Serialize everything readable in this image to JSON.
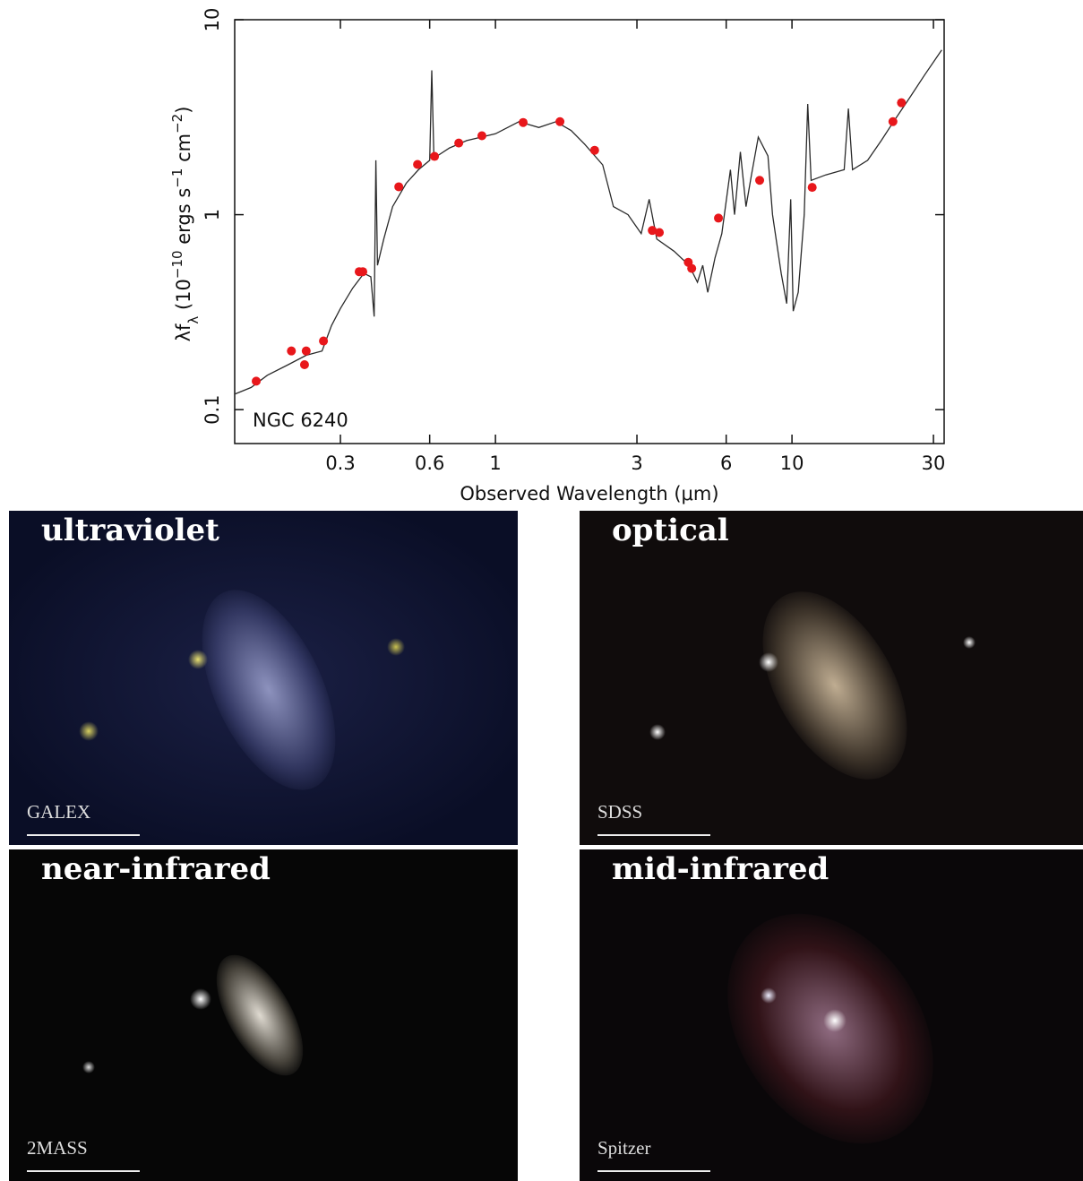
{
  "chart_data": {
    "type": "line",
    "x_label": "Observed Wavelength (μm)",
    "y_label": [
      "λf",
      "λ",
      " (10",
      "−10",
      " ergs s",
      "−1",
      " cm",
      "−2",
      ")"
    ],
    "annotation": "NGC 6240",
    "xlog": true,
    "ylog": true,
    "xlim": [
      0.132,
      32.6
    ],
    "ylim": [
      0.067,
      10
    ],
    "xticks": [
      0.3,
      0.6,
      1,
      3,
      6,
      10,
      30
    ],
    "yticks": [
      0.1,
      1,
      10
    ],
    "spectrum_color": "#2a2a2a",
    "point_color": "#e8171b",
    "spectrum": {
      "x": [
        0.132,
        0.15,
        0.17,
        0.2,
        0.23,
        0.26,
        0.28,
        0.3,
        0.33,
        0.36,
        0.38,
        0.39,
        0.395,
        0.4,
        0.42,
        0.45,
        0.5,
        0.55,
        0.6,
        0.61,
        0.62,
        0.7,
        0.8,
        1.0,
        1.2,
        1.4,
        1.6,
        1.8,
        2.0,
        2.3,
        2.5,
        2.8,
        3.1,
        3.3,
        3.5,
        4,
        4.5,
        4.8,
        5.0,
        5.2,
        5.5,
        5.8,
        6.2,
        6.4,
        6.7,
        7,
        7.3,
        7.7,
        8.3,
        8.6,
        9.2,
        9.6,
        9.9,
        10.1,
        10.5,
        11,
        11.3,
        11.6,
        13,
        15,
        15.5,
        16,
        18,
        20,
        22,
        25,
        28,
        32
      ],
      "values": [
        0.12,
        0.13,
        0.15,
        0.17,
        0.19,
        0.2,
        0.27,
        0.33,
        0.42,
        0.5,
        0.48,
        0.3,
        1.9,
        0.55,
        0.75,
        1.1,
        1.45,
        1.7,
        1.9,
        5.5,
        1.95,
        2.2,
        2.4,
        2.6,
        3.0,
        2.8,
        3.0,
        2.7,
        2.3,
        1.8,
        1.1,
        1.0,
        0.8,
        1.2,
        0.75,
        0.65,
        0.55,
        0.45,
        0.55,
        0.4,
        0.6,
        0.8,
        1.7,
        1.0,
        2.1,
        1.1,
        1.6,
        2.5,
        2.0,
        1.0,
        0.5,
        0.35,
        1.2,
        0.32,
        0.4,
        1.0,
        3.7,
        1.5,
        1.6,
        1.7,
        3.5,
        1.7,
        1.9,
        2.4,
        3.0,
        4.0,
        5.2,
        7.0
      ]
    },
    "photometry": {
      "x": [
        0.156,
        0.205,
        0.227,
        0.23,
        0.263,
        0.347,
        0.357,
        0.472,
        0.546,
        0.623,
        0.752,
        0.9,
        1.24,
        1.65,
        2.16,
        3.38,
        3.57,
        4.47,
        4.59,
        5.65,
        7.78,
        11.7,
        21.9,
        23.4
      ],
      "values": [
        0.14,
        0.2,
        0.17,
        0.2,
        0.225,
        0.51,
        0.51,
        1.39,
        1.81,
        1.99,
        2.33,
        2.54,
        2.97,
        3.0,
        2.14,
        0.83,
        0.81,
        0.57,
        0.53,
        0.96,
        1.5,
        1.38,
        3.0,
        3.75
      ]
    }
  },
  "panels": [
    {
      "title": "ultraviolet",
      "instrument": "GALEX"
    },
    {
      "title": "optical",
      "instrument": "SDSS"
    },
    {
      "title": "near-infrared",
      "instrument": "2MASS"
    },
    {
      "title": "mid-infrared",
      "instrument": "Spitzer"
    }
  ]
}
